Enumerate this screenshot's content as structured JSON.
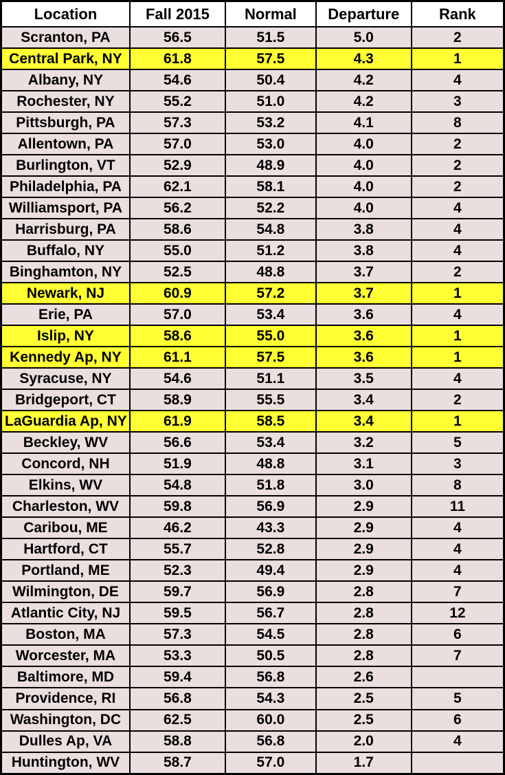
{
  "colors": {
    "row_bg": "#ebdede",
    "highlight_bg": "#ffff33",
    "header_bg": "#ffffff",
    "border": "#000000",
    "text": "#000000"
  },
  "chart_data": {
    "type": "table",
    "columns": [
      "Location",
      "Fall 2015",
      "Normal",
      "Departure",
      "Rank"
    ],
    "highlight_meaning": "rank-1 warmest fall on record rows shown in yellow",
    "rows": [
      {
        "location": "Scranton, PA",
        "fall_2015": "56.5",
        "normal": "51.5",
        "departure": "5.0",
        "rank": "2",
        "highlight": false
      },
      {
        "location": "Central Park, NY",
        "fall_2015": "61.8",
        "normal": "57.5",
        "departure": "4.3",
        "rank": "1",
        "highlight": true
      },
      {
        "location": "Albany, NY",
        "fall_2015": "54.6",
        "normal": "50.4",
        "departure": "4.2",
        "rank": "4",
        "highlight": false
      },
      {
        "location": "Rochester, NY",
        "fall_2015": "55.2",
        "normal": "51.0",
        "departure": "4.2",
        "rank": "3",
        "highlight": false
      },
      {
        "location": "Pittsburgh, PA",
        "fall_2015": "57.3",
        "normal": "53.2",
        "departure": "4.1",
        "rank": "8",
        "highlight": false
      },
      {
        "location": "Allentown, PA",
        "fall_2015": "57.0",
        "normal": "53.0",
        "departure": "4.0",
        "rank": "2",
        "highlight": false
      },
      {
        "location": "Burlington, VT",
        "fall_2015": "52.9",
        "normal": "48.9",
        "departure": "4.0",
        "rank": "2",
        "highlight": false
      },
      {
        "location": "Philadelphia, PA",
        "fall_2015": "62.1",
        "normal": "58.1",
        "departure": "4.0",
        "rank": "2",
        "highlight": false
      },
      {
        "location": "Williamsport, PA",
        "fall_2015": "56.2",
        "normal": "52.2",
        "departure": "4.0",
        "rank": "4",
        "highlight": false
      },
      {
        "location": "Harrisburg, PA",
        "fall_2015": "58.6",
        "normal": "54.8",
        "departure": "3.8",
        "rank": "4",
        "highlight": false
      },
      {
        "location": "Buffalo, NY",
        "fall_2015": "55.0",
        "normal": "51.2",
        "departure": "3.8",
        "rank": "4",
        "highlight": false
      },
      {
        "location": "Binghamton, NY",
        "fall_2015": "52.5",
        "normal": "48.8",
        "departure": "3.7",
        "rank": "2",
        "highlight": false
      },
      {
        "location": "Newark, NJ",
        "fall_2015": "60.9",
        "normal": "57.2",
        "departure": "3.7",
        "rank": "1",
        "highlight": true
      },
      {
        "location": "Erie, PA",
        "fall_2015": "57.0",
        "normal": "53.4",
        "departure": "3.6",
        "rank": "4",
        "highlight": false
      },
      {
        "location": "Islip, NY",
        "fall_2015": "58.6",
        "normal": "55.0",
        "departure": "3.6",
        "rank": "1",
        "highlight": true
      },
      {
        "location": "Kennedy Ap, NY",
        "fall_2015": "61.1",
        "normal": "57.5",
        "departure": "3.6",
        "rank": "1",
        "highlight": true
      },
      {
        "location": "Syracuse, NY",
        "fall_2015": "54.6",
        "normal": "51.1",
        "departure": "3.5",
        "rank": "4",
        "highlight": false
      },
      {
        "location": "Bridgeport, CT",
        "fall_2015": "58.9",
        "normal": "55.5",
        "departure": "3.4",
        "rank": "2",
        "highlight": false
      },
      {
        "location": "LaGuardia Ap, NY",
        "fall_2015": "61.9",
        "normal": "58.5",
        "departure": "3.4",
        "rank": "1",
        "highlight": true
      },
      {
        "location": "Beckley, WV",
        "fall_2015": "56.6",
        "normal": "53.4",
        "departure": "3.2",
        "rank": "5",
        "highlight": false
      },
      {
        "location": "Concord, NH",
        "fall_2015": "51.9",
        "normal": "48.8",
        "departure": "3.1",
        "rank": "3",
        "highlight": false
      },
      {
        "location": "Elkins, WV",
        "fall_2015": "54.8",
        "normal": "51.8",
        "departure": "3.0",
        "rank": "8",
        "highlight": false
      },
      {
        "location": "Charleston, WV",
        "fall_2015": "59.8",
        "normal": "56.9",
        "departure": "2.9",
        "rank": "11",
        "highlight": false
      },
      {
        "location": "Caribou, ME",
        "fall_2015": "46.2",
        "normal": "43.3",
        "departure": "2.9",
        "rank": "4",
        "highlight": false
      },
      {
        "location": "Hartford, CT",
        "fall_2015": "55.7",
        "normal": "52.8",
        "departure": "2.9",
        "rank": "4",
        "highlight": false
      },
      {
        "location": "Portland, ME",
        "fall_2015": "52.3",
        "normal": "49.4",
        "departure": "2.9",
        "rank": "4",
        "highlight": false
      },
      {
        "location": "Wilmington, DE",
        "fall_2015": "59.7",
        "normal": "56.9",
        "departure": "2.8",
        "rank": "7",
        "highlight": false
      },
      {
        "location": "Atlantic City, NJ",
        "fall_2015": "59.5",
        "normal": "56.7",
        "departure": "2.8",
        "rank": "12",
        "highlight": false
      },
      {
        "location": "Boston, MA",
        "fall_2015": "57.3",
        "normal": "54.5",
        "departure": "2.8",
        "rank": "6",
        "highlight": false
      },
      {
        "location": "Worcester, MA",
        "fall_2015": "53.3",
        "normal": "50.5",
        "departure": "2.8",
        "rank": "7",
        "highlight": false
      },
      {
        "location": "Baltimore, MD",
        "fall_2015": "59.4",
        "normal": "56.8",
        "departure": "2.6",
        "rank": "",
        "highlight": false
      },
      {
        "location": "Providence, RI",
        "fall_2015": "56.8",
        "normal": "54.3",
        "departure": "2.5",
        "rank": "5",
        "highlight": false
      },
      {
        "location": "Washington, DC",
        "fall_2015": "62.5",
        "normal": "60.0",
        "departure": "2.5",
        "rank": "6",
        "highlight": false
      },
      {
        "location": "Dulles Ap, VA",
        "fall_2015": "58.8",
        "normal": "56.8",
        "departure": "2.0",
        "rank": "4",
        "highlight": false
      },
      {
        "location": "Huntington, WV",
        "fall_2015": "58.7",
        "normal": "57.0",
        "departure": "1.7",
        "rank": "",
        "highlight": false
      }
    ]
  }
}
